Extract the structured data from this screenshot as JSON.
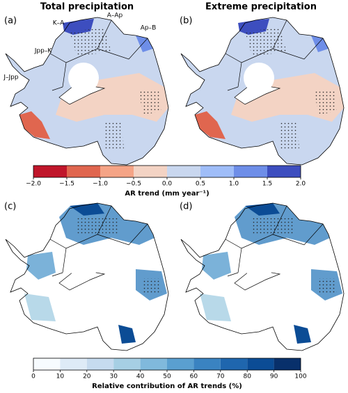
{
  "panels": {
    "titles": [
      "Total precipitation",
      "Extreme precipitation"
    ],
    "labels": [
      "(a)",
      "(b)",
      "(c)",
      "(d)"
    ],
    "regions": [
      "K–A",
      "A–Ap",
      "Ap–B",
      "Jpp–K",
      "J–Jpp"
    ]
  },
  "colorbars": [
    {
      "label": "AR trend (mm year⁻¹)",
      "ticks": [
        {
          "value": -2.0,
          "label": "−2.0"
        },
        {
          "value": -1.5,
          "label": "−1.5"
        },
        {
          "value": -1.0,
          "label": "−1.0"
        },
        {
          "value": -0.5,
          "label": "−0.5"
        },
        {
          "value": 0.0,
          "label": "0.0"
        },
        {
          "value": 0.5,
          "label": "0.5"
        },
        {
          "value": 1.0,
          "label": "1.0"
        },
        {
          "value": 1.5,
          "label": "1.5"
        },
        {
          "value": 2.0,
          "label": "2.0"
        }
      ],
      "colors": [
        "#c0162b",
        "#e0664f",
        "#f5a486",
        "#f3d3c4",
        "#c9d7ef",
        "#9fbdf8",
        "#6e8ee8",
        "#3d4ebf"
      ]
    },
    {
      "label": "Relative contribution of AR trends (%)",
      "ticks": [
        0,
        10,
        20,
        30,
        40,
        50,
        60,
        70,
        80,
        90,
        100
      ],
      "colors": [
        "#f7fbff",
        "#deebf7",
        "#c6dbef",
        "#a6cfe4",
        "#80b9dc",
        "#5a9fd0",
        "#3a83c1",
        "#1f66ae",
        "#0b4c95",
        "#08306b"
      ]
    }
  ]
}
